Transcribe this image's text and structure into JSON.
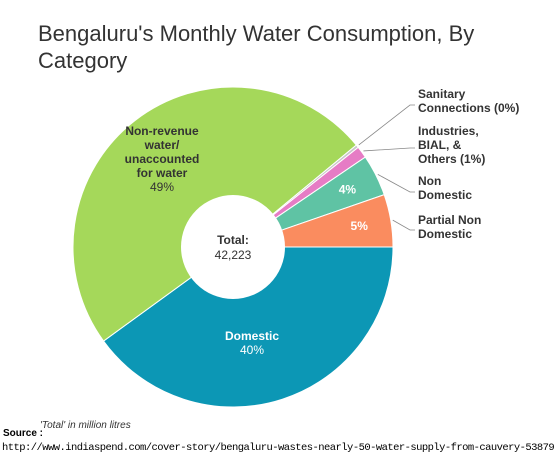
{
  "chart_data": {
    "type": "pie",
    "title": "Bengaluru's Monthly Water Consumption, By Category",
    "center_label": "Total:",
    "center_value": "42,223",
    "slices": [
      {
        "lines": [
          "Sanitary",
          "Connections (0%)"
        ],
        "value": 0.3,
        "color": "#c8c8c8",
        "placement": "outside"
      },
      {
        "lines": [
          "Industries,",
          "BIAL, &",
          "Others (1%)"
        ],
        "value": 1.2,
        "color": "#e67cc5",
        "placement": "outside"
      },
      {
        "lines": [
          "Non",
          "Domestic"
        ],
        "value": 4.2,
        "color": "#5fc3a4",
        "placement": "outside",
        "inner_label": "4%"
      },
      {
        "lines": [
          "Partial Non",
          "Domestic"
        ],
        "value": 5.3,
        "color": "#fa8c5f",
        "placement": "outside",
        "inner_label": "5%"
      },
      {
        "lines": [
          "Domestic",
          "40%"
        ],
        "value": 40.0,
        "color": "#0c97b5",
        "placement": "inside",
        "label_color": "#ffffff"
      },
      {
        "lines": [
          "Non-revenue",
          "water/",
          "unaccounted",
          "for water",
          "49%"
        ],
        "value": 49.0,
        "color": "#a5d85a",
        "placement": "inside",
        "label_color": "#333333"
      }
    ]
  },
  "footer": {
    "note": "'Total' in million litres",
    "source_label": "Source :",
    "source_url": "http://www.indiaspend.com/cover-story/bengaluru-wastes-nearly-50-water-supply-from-cauvery-53879"
  }
}
